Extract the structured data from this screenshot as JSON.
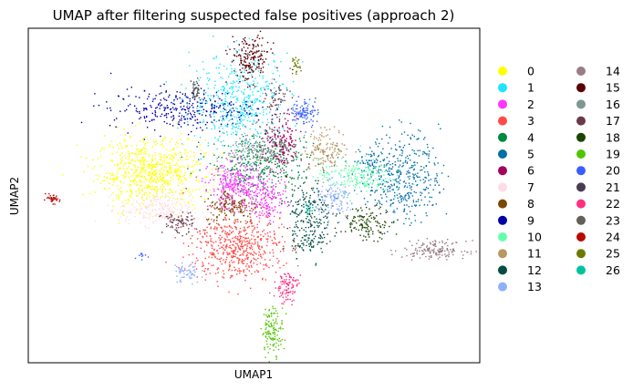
{
  "chart_data": {
    "type": "scatter",
    "title": "UMAP after filtering suspected false positives (approach 2)",
    "xlabel": "UMAP1",
    "ylabel": "UMAP2",
    "xticks": [],
    "yticks": [],
    "grid": false,
    "legend_placement": "outside-right",
    "legend_columns": 2,
    "xlim": [
      0,
      100
    ],
    "ylim": [
      0,
      100
    ],
    "categories": [
      "0",
      "1",
      "2",
      "3",
      "4",
      "5",
      "6",
      "7",
      "8",
      "9",
      "10",
      "11",
      "12",
      "13",
      "14",
      "15",
      "16",
      "17",
      "18",
      "19",
      "20",
      "21",
      "22",
      "23",
      "24",
      "25",
      "26"
    ],
    "colors": [
      "#ffff00",
      "#1ce6ff",
      "#ff34ff",
      "#ff4a46",
      "#008941",
      "#006fa6",
      "#a30059",
      "#ffdbe5",
      "#7a4900",
      "#0000a6",
      "#63ffac",
      "#b79762",
      "#004d43",
      "#8fb0ff",
      "#997d87",
      "#5a0007",
      "#809693",
      "#6a3a4c",
      "#1b4400",
      "#4fc601",
      "#3b5dff",
      "#4a3b53",
      "#ff2f80",
      "#61615a",
      "#ba0900",
      "#6b7900",
      "#00c2a0"
    ],
    "clusters": [
      {
        "label": "0",
        "x": 27,
        "y": 57,
        "sx": 6.0,
        "sy": 5.0,
        "n": 700
      },
      {
        "label": "1",
        "x": 47,
        "y": 78,
        "sx": 5.5,
        "sy": 7.0,
        "n": 500
      },
      {
        "label": "2",
        "x": 46,
        "y": 53,
        "sx": 3.0,
        "sy": 3.5,
        "n": 350
      },
      {
        "label": "2",
        "x": 53,
        "y": 49,
        "sx": 2.0,
        "sy": 3.5,
        "n": 150
      },
      {
        "label": "3",
        "x": 46,
        "y": 35,
        "sx": 5.0,
        "sy": 5.0,
        "n": 550
      },
      {
        "label": "4",
        "x": 52,
        "y": 60,
        "sx": 6.0,
        "sy": 4.5,
        "n": 350
      },
      {
        "label": "5",
        "x": 83,
        "y": 56,
        "sx": 4.0,
        "sy": 6.5,
        "n": 400
      },
      {
        "label": "5",
        "x": 76,
        "y": 60,
        "sx": 2.0,
        "sy": 2.0,
        "n": 60
      },
      {
        "label": "6",
        "x": 56,
        "y": 65,
        "sx": 2.0,
        "sy": 4.0,
        "n": 170
      },
      {
        "label": "7",
        "x": 28,
        "y": 46,
        "sx": 4.0,
        "sy": 2.3,
        "n": 220
      },
      {
        "label": "8",
        "x": 45,
        "y": 47,
        "sx": 3.0,
        "sy": 2.5,
        "n": 150
      },
      {
        "label": "9",
        "x": 34,
        "y": 76,
        "sx": 8.0,
        "sy": 3.0,
        "n": 320
      },
      {
        "label": "10",
        "x": 72,
        "y": 56,
        "sx": 4.0,
        "sy": 2.5,
        "n": 200
      },
      {
        "label": "11",
        "x": 66,
        "y": 64,
        "sx": 2.5,
        "sy": 3.0,
        "n": 140
      },
      {
        "label": "12",
        "x": 62,
        "y": 45,
        "sx": 2.5,
        "sy": 5.0,
        "n": 200
      },
      {
        "label": "12",
        "x": 62,
        "y": 36,
        "sx": 2.0,
        "sy": 2.0,
        "n": 60
      },
      {
        "label": "13",
        "x": 68,
        "y": 49,
        "sx": 2.2,
        "sy": 2.5,
        "n": 120
      },
      {
        "label": "13",
        "x": 35,
        "y": 27,
        "sx": 1.5,
        "sy": 1.8,
        "n": 60
      },
      {
        "label": "14",
        "x": 90,
        "y": 34,
        "sx": 3.5,
        "sy": 1.3,
        "n": 160
      },
      {
        "label": "15",
        "x": 49,
        "y": 91,
        "sx": 2.2,
        "sy": 3.5,
        "n": 180
      },
      {
        "label": "16",
        "x": 50,
        "y": 64,
        "sx": 3.0,
        "sy": 3.0,
        "n": 140
      },
      {
        "label": "17",
        "x": 33,
        "y": 42,
        "sx": 1.8,
        "sy": 1.6,
        "n": 80
      },
      {
        "label": "17",
        "x": 55,
        "y": 78,
        "sx": 1.3,
        "sy": 2.8,
        "n": 60
      },
      {
        "label": "18",
        "x": 75,
        "y": 42,
        "sx": 2.8,
        "sy": 2.4,
        "n": 130
      },
      {
        "label": "19",
        "x": 54,
        "y": 10,
        "sx": 1.2,
        "sy": 3.5,
        "n": 130
      },
      {
        "label": "20",
        "x": 61,
        "y": 75,
        "sx": 1.5,
        "sy": 2.0,
        "n": 100
      },
      {
        "label": "20",
        "x": 25,
        "y": 32,
        "sx": 0.6,
        "sy": 0.7,
        "n": 10
      },
      {
        "label": "21",
        "x": 37,
        "y": 82,
        "sx": 0.6,
        "sy": 1.5,
        "n": 25
      },
      {
        "label": "22",
        "x": 57,
        "y": 23,
        "sx": 1.3,
        "sy": 2.5,
        "n": 100
      },
      {
        "label": "23",
        "x": 37,
        "y": 82,
        "sx": 0.5,
        "sy": 1.5,
        "n": 20
      },
      {
        "label": "24",
        "x": 5,
        "y": 49,
        "sx": 0.9,
        "sy": 0.6,
        "n": 40
      },
      {
        "label": "25",
        "x": 59,
        "y": 89,
        "sx": 0.6,
        "sy": 1.3,
        "n": 25
      },
      {
        "label": "26",
        "x": 62,
        "y": 46,
        "sx": 0.6,
        "sy": 0.6,
        "n": 15
      }
    ]
  }
}
